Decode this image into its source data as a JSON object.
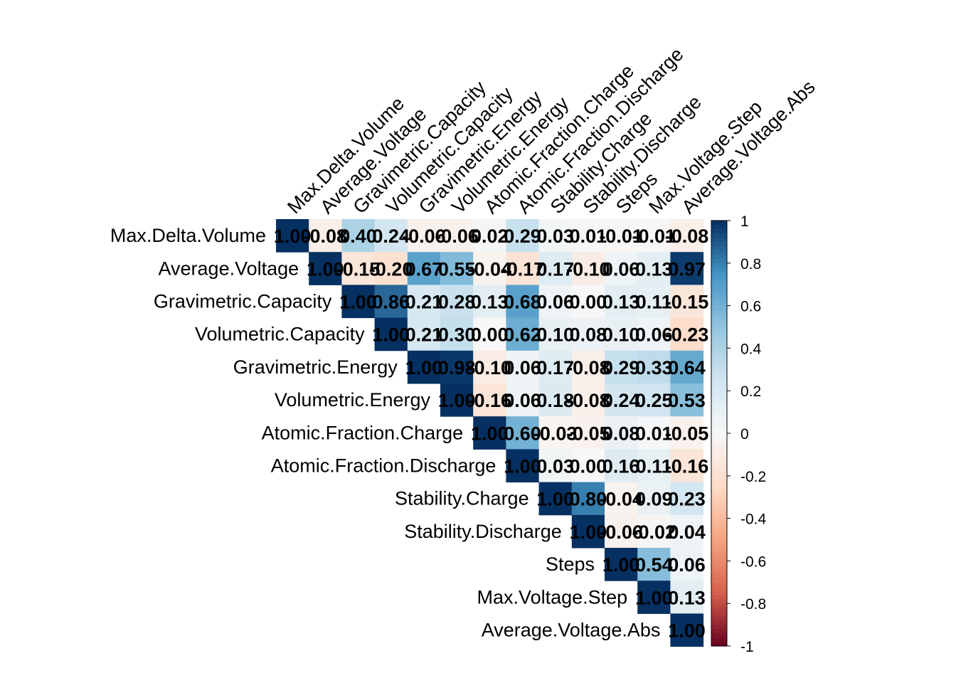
{
  "chart_data": {
    "type": "heatmap",
    "title": "",
    "layout": "upper-triangle",
    "variables": [
      "Max.Delta.Volume",
      "Average.Voltage",
      "Gravimetric.Capacity",
      "Volumetric.Capacity",
      "Gravimetric.Energy",
      "Volumetric.Energy",
      "Atomic.Fraction.Charge",
      "Atomic.Fraction.Discharge",
      "Stability.Charge",
      "Stability.Discharge",
      "Steps",
      "Max.Voltage.Step",
      "Average.Voltage.Abs"
    ],
    "matrix": [
      [
        1.0,
        -0.08,
        0.4,
        0.24,
        -0.06,
        -0.06,
        0.02,
        0.29,
        0.03,
        0.01,
        -0.01,
        -0.01,
        -0.08
      ],
      [
        null,
        1.0,
        -0.15,
        -0.2,
        0.67,
        0.55,
        -0.04,
        -0.17,
        0.17,
        -0.1,
        0.06,
        0.13,
        0.97
      ],
      [
        null,
        null,
        1.0,
        0.86,
        0.21,
        0.28,
        0.13,
        0.68,
        0.06,
        0.0,
        0.13,
        0.11,
        -0.15
      ],
      [
        null,
        null,
        null,
        1.0,
        0.21,
        0.3,
        0.0,
        0.62,
        0.1,
        0.08,
        0.1,
        0.06,
        -0.23
      ],
      [
        null,
        null,
        null,
        null,
        1.0,
        0.98,
        -0.1,
        0.06,
        0.17,
        -0.08,
        0.29,
        0.33,
        0.64
      ],
      [
        null,
        null,
        null,
        null,
        null,
        1.0,
        -0.16,
        0.06,
        0.18,
        -0.08,
        0.24,
        0.25,
        0.53
      ],
      [
        null,
        null,
        null,
        null,
        null,
        null,
        1.0,
        0.6,
        -0.03,
        -0.05,
        0.08,
        0.01,
        -0.05
      ],
      [
        null,
        null,
        null,
        null,
        null,
        null,
        null,
        1.0,
        0.03,
        0.0,
        0.16,
        0.11,
        -0.16
      ],
      [
        null,
        null,
        null,
        null,
        null,
        null,
        null,
        null,
        1.0,
        0.8,
        -0.04,
        0.09,
        0.23
      ],
      [
        null,
        null,
        null,
        null,
        null,
        null,
        null,
        null,
        null,
        1.0,
        -0.06,
        -0.02,
        0.04
      ],
      [
        null,
        null,
        null,
        null,
        null,
        null,
        null,
        null,
        null,
        null,
        1.0,
        0.54,
        0.06
      ],
      [
        null,
        null,
        null,
        null,
        null,
        null,
        null,
        null,
        null,
        null,
        null,
        1.0,
        0.13
      ],
      [
        null,
        null,
        null,
        null,
        null,
        null,
        null,
        null,
        null,
        null,
        null,
        null,
        1.0
      ]
    ],
    "value_format": "2 decimals",
    "colorbar": {
      "range": [
        -1,
        1
      ],
      "ticks": [
        "1",
        "0.8",
        "0.6",
        "0.4",
        "0.2",
        "0",
        "-0.2",
        "-0.4",
        "-0.6",
        "-0.8",
        "-1"
      ],
      "colors": {
        "neg1": "#67001f",
        "neg075": "#d6604d",
        "neg05": "#f4a582",
        "neg025": "#fddbc7",
        "zero": "#f7f7f7",
        "pos025": "#d1e5f0",
        "pos05": "#92c5de",
        "pos075": "#4393c3",
        "pos1": "#053061"
      }
    },
    "legend": "right"
  }
}
